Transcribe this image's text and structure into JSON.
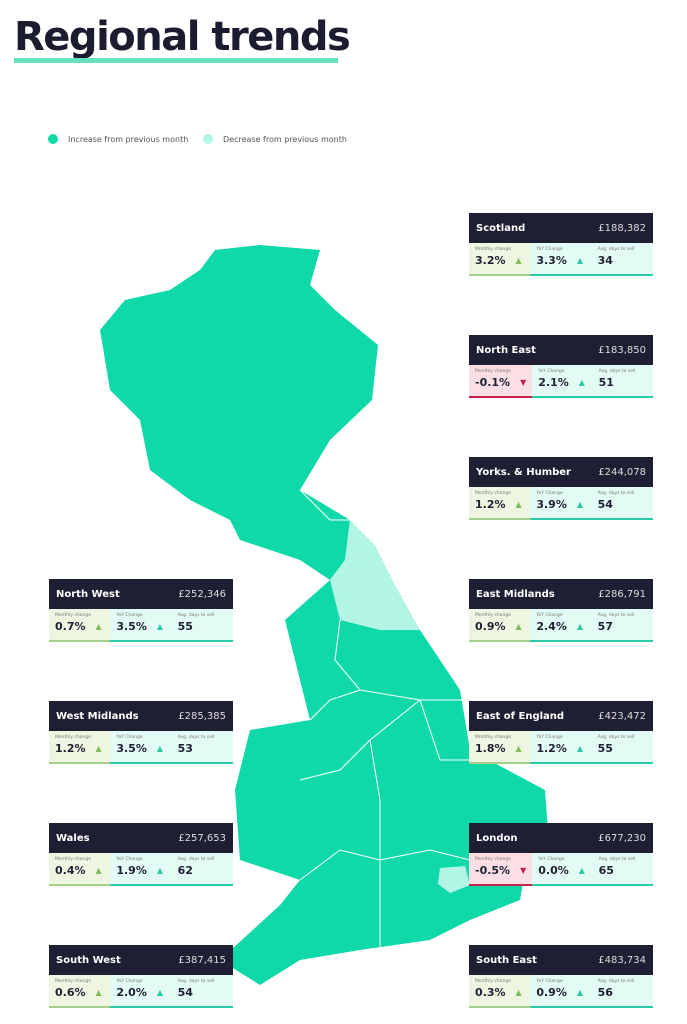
{
  "title": "Regional trends",
  "legend": [
    {
      "label": "Increase from previous month",
      "color": "#10d9a9"
    },
    {
      "label": "Decrease from previous month",
      "color": "#b3f5e4"
    }
  ],
  "labels": {
    "monthly": "Monthly change",
    "yoy": "YoY Change",
    "days": "Avg. days to sell"
  },
  "regions": [
    {
      "name": "Scotland",
      "price": "£188,382",
      "monthly": "3.2%",
      "monthly_dir": "up",
      "yoy": "3.3%",
      "days": "34"
    },
    {
      "name": "North East",
      "price": "£183,850",
      "monthly": "-0.1%",
      "monthly_dir": "down",
      "yoy": "2.1%",
      "days": "51"
    },
    {
      "name": "Yorks. & Humber",
      "price": "£244,078",
      "monthly": "1.2%",
      "monthly_dir": "up",
      "yoy": "3.9%",
      "days": "54"
    },
    {
      "name": "East Midlands",
      "price": "£286,791",
      "monthly": "0.9%",
      "monthly_dir": "up",
      "yoy": "2.4%",
      "days": "57"
    },
    {
      "name": "East of England",
      "price": "£423,472",
      "monthly": "1.8%",
      "monthly_dir": "up",
      "yoy": "1.2%",
      "days": "55"
    },
    {
      "name": "London",
      "price": "£677,230",
      "monthly": "-0.5%",
      "monthly_dir": "down",
      "yoy": "0.0%",
      "days": "65"
    },
    {
      "name": "South East",
      "price": "£483,734",
      "monthly": "0.3%",
      "monthly_dir": "up",
      "yoy": "0.9%",
      "days": "56"
    },
    {
      "name": "North West",
      "price": "£252,346",
      "monthly": "0.7%",
      "monthly_dir": "up",
      "yoy": "3.5%",
      "days": "55"
    },
    {
      "name": "West Midlands",
      "price": "£285,385",
      "monthly": "1.2%",
      "monthly_dir": "up",
      "yoy": "3.5%",
      "days": "53"
    },
    {
      "name": "Wales",
      "price": "£257,653",
      "monthly": "0.4%",
      "monthly_dir": "up",
      "yoy": "1.9%",
      "days": "62"
    },
    {
      "name": "South West",
      "price": "£387,415",
      "monthly": "0.6%",
      "monthly_dir": "up",
      "yoy": "2.0%",
      "days": "54"
    }
  ]
}
